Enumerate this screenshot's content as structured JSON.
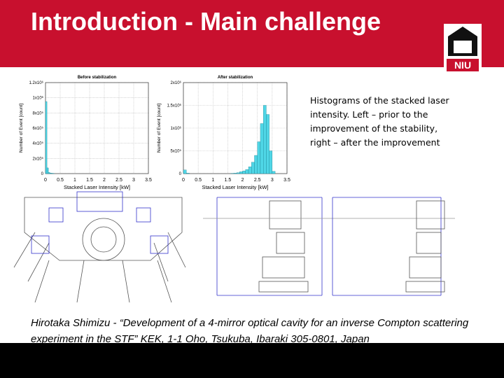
{
  "slide": {
    "title": "Introduction - Main challenge",
    "caption": "Histograms of the stacked laser intensity. Left – prior to the improvement of the stability, right – after the improvement",
    "citation": "Hirotaka Shimizu - “Development of a 4-mirror optical cavity for an inverse Compton scattering experiment in the STF” KEK, 1-1 Oho, Tsukuba, Ibaraki 305-0801, Japan",
    "logo": "NIU"
  },
  "chart_data": [
    {
      "type": "histogram",
      "title": "Before stabilization",
      "x_label": "Stacked Laser Intensity  [kW]",
      "y_label": "Number of Event [count]",
      "color": "#4fd6e6",
      "bins": [
        0,
        0.05,
        0.1,
        0.15,
        0.2,
        0.25,
        0.3
      ],
      "values": [
        950000,
        75000,
        15000,
        8000,
        5000,
        3000
      ],
      "xlim": [
        0,
        3.5
      ],
      "xticks": [
        0,
        0.5,
        1,
        1.5,
        2,
        2.5,
        3,
        3.5
      ],
      "ylim": [
        0,
        1200000
      ],
      "yticks": [
        0,
        {
          "value": 200000,
          "label": "2x10⁵"
        },
        {
          "value": 400000,
          "label": "4x10⁵"
        },
        {
          "value": 600000,
          "label": "6x10⁵"
        },
        {
          "value": 800000,
          "label": "8x10⁵"
        },
        {
          "value": 1000000,
          "label": "1x10⁶"
        },
        {
          "value": 1200000,
          "label": "1.2x10⁶"
        }
      ],
      "grid": true
    },
    {
      "type": "histogram",
      "title": "After stabilization",
      "x_label": "Stacked Laser Intensity  [kW]",
      "y_label": "Number of Event [count]",
      "color": "#4fd6e6",
      "bins": [
        0,
        0.1,
        0.2,
        0.3,
        0.4,
        0.5,
        0.6,
        0.7,
        0.8,
        0.9,
        1,
        1.1,
        1.2,
        1.3,
        1.4,
        1.5,
        1.6,
        1.7,
        1.8,
        1.9,
        2,
        2.1,
        2.2,
        2.3,
        2.4,
        2.5,
        2.6,
        2.7,
        2.8,
        2.9,
        3,
        3.1
      ],
      "values": [
        80000,
        10000,
        0,
        0,
        0,
        0,
        0,
        0,
        0,
        0,
        0,
        0,
        0,
        0,
        0,
        0,
        5000,
        10000,
        20000,
        40000,
        60000,
        90000,
        150000,
        250000,
        400000,
        700000,
        1100000,
        1500000,
        1300000,
        500000,
        50000
      ],
      "xlim": [
        0,
        3.5
      ],
      "xticks": [
        0,
        0.5,
        1,
        1.5,
        2,
        2.5,
        3,
        3.5
      ],
      "ylim": [
        0,
        2000000
      ],
      "yticks": [
        0,
        {
          "value": 500000,
          "label": "5x10⁵"
        },
        {
          "value": 1000000,
          "label": "1x10⁶"
        },
        {
          "value": 1500000,
          "label": "1.5x10⁶"
        },
        {
          "value": 2000000,
          "label": "2x10⁶"
        }
      ],
      "grid": true
    }
  ]
}
